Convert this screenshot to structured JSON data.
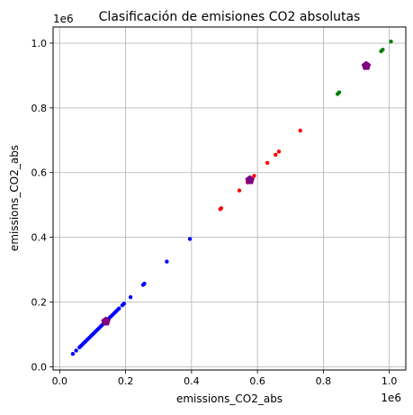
{
  "chart_data": {
    "type": "scatter",
    "title": "Clasificación de emisiones CO2 absolutas",
    "xlabel": "emissions_CO2_abs",
    "ylabel": "emissions_CO2_abs",
    "x_offset_label": "1e6",
    "y_offset_label": "1e6",
    "xlim": [
      -0.02,
      1.05
    ],
    "ylim": [
      -0.01,
      1.05
    ],
    "xticks": [
      0.0,
      0.2,
      0.4,
      0.6,
      0.8,
      1.0
    ],
    "xtick_labels": [
      "0.0",
      "0.2",
      "0.4",
      "0.6",
      "0.8",
      "1.0"
    ],
    "yticks": [
      0.0,
      0.2,
      0.4,
      0.6,
      0.8,
      1.0
    ],
    "ytick_labels": [
      "0.0",
      "0.2",
      "0.4",
      "0.6",
      "0.8",
      "1.0"
    ],
    "grid": true,
    "legend": "none",
    "series": [
      {
        "color": "#0000ff",
        "marker": "circle",
        "points": [
          [
            0.04,
            0.04
          ],
          [
            0.05,
            0.05
          ],
          [
            0.06,
            0.06
          ],
          [
            0.065,
            0.065
          ],
          [
            0.07,
            0.07
          ],
          [
            0.075,
            0.075
          ],
          [
            0.08,
            0.08
          ],
          [
            0.085,
            0.085
          ],
          [
            0.09,
            0.09
          ],
          [
            0.095,
            0.095
          ],
          [
            0.1,
            0.1
          ],
          [
            0.105,
            0.105
          ],
          [
            0.11,
            0.11
          ],
          [
            0.115,
            0.115
          ],
          [
            0.12,
            0.12
          ],
          [
            0.125,
            0.125
          ],
          [
            0.13,
            0.13
          ],
          [
            0.135,
            0.135
          ],
          [
            0.145,
            0.145
          ],
          [
            0.15,
            0.15
          ],
          [
            0.155,
            0.155
          ],
          [
            0.16,
            0.16
          ],
          [
            0.165,
            0.165
          ],
          [
            0.17,
            0.17
          ],
          [
            0.175,
            0.175
          ],
          [
            0.18,
            0.18
          ],
          [
            0.19,
            0.19
          ],
          [
            0.195,
            0.195
          ],
          [
            0.215,
            0.215
          ],
          [
            0.253,
            0.253
          ],
          [
            0.257,
            0.257
          ],
          [
            0.325,
            0.325
          ],
          [
            0.395,
            0.395
          ]
        ]
      },
      {
        "color": "#ff0000",
        "marker": "circle",
        "points": [
          [
            0.487,
            0.487
          ],
          [
            0.49,
            0.49
          ],
          [
            0.545,
            0.545
          ],
          [
            0.57,
            0.57
          ],
          [
            0.59,
            0.59
          ],
          [
            0.63,
            0.63
          ],
          [
            0.655,
            0.655
          ],
          [
            0.665,
            0.665
          ],
          [
            0.73,
            0.73
          ]
        ]
      },
      {
        "color": "#008000",
        "marker": "circle",
        "points": [
          [
            0.843,
            0.843
          ],
          [
            0.848,
            0.848
          ],
          [
            0.975,
            0.975
          ],
          [
            0.98,
            0.98
          ],
          [
            1.005,
            1.005
          ]
        ]
      }
    ],
    "centroids": {
      "color": "#800080",
      "marker": "pentagon",
      "points": [
        [
          0.14,
          0.14
        ],
        [
          0.577,
          0.577
        ],
        [
          0.93,
          0.93
        ]
      ]
    }
  }
}
